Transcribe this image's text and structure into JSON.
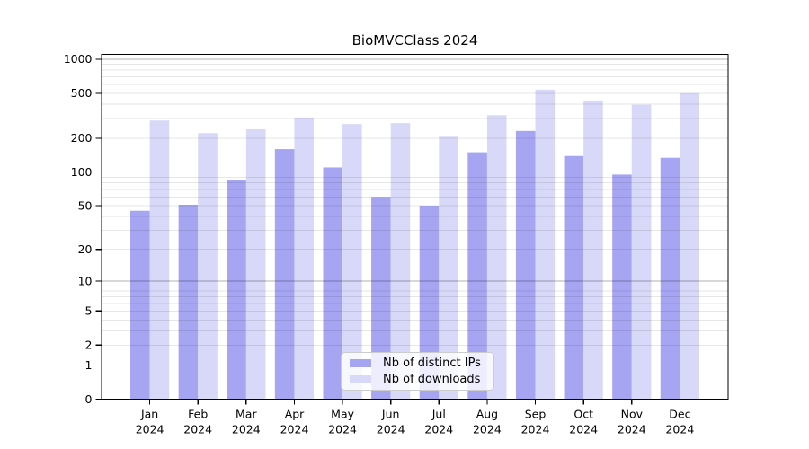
{
  "chart_data": {
    "type": "bar",
    "title": "BioMVCClass 2024",
    "categories": [
      "Jan 2024",
      "Feb 2024",
      "Mar 2024",
      "Apr 2024",
      "May 2024",
      "Jun 2024",
      "Jul 2024",
      "Aug 2024",
      "Sep 2024",
      "Oct 2024",
      "Nov 2024",
      "Dec 2024"
    ],
    "series": [
      {
        "key": "distinct-ips",
        "name": "Nb of distinct IPs",
        "color": "#a5a5f2",
        "values": [
          45,
          51,
          85,
          160,
          110,
          60,
          50,
          150,
          232,
          139,
          95,
          134
        ]
      },
      {
        "key": "downloads",
        "name": "Nb of downloads",
        "color": "#d8d8f8",
        "values": [
          287,
          222,
          240,
          305,
          267,
          272,
          206,
          320,
          538,
          432,
          396,
          500
        ]
      }
    ],
    "y_scale": "log10(value+1)",
    "y_ticks": [
      0,
      1,
      2,
      5,
      10,
      20,
      50,
      100,
      200,
      500,
      1000
    ],
    "y_major_grid": [
      1,
      10,
      100,
      1000
    ],
    "ylim": [
      0,
      1120
    ],
    "xlabel": "",
    "ylabel": "",
    "grid": true,
    "legend_position": "inside-bottom-center"
  },
  "colors": {
    "background": "#ffffff",
    "grid_major": "#b0b0b0",
    "grid_minor": "#e6e6e6",
    "axis": "#000000",
    "legend_border": "#cccccc",
    "text": "#000000"
  }
}
